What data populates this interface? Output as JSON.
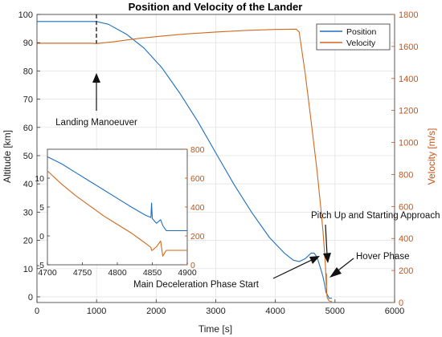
{
  "chart_data": {
    "type": "line",
    "title": "Position and Velocity of the Lander",
    "xlabel": "Time [s]",
    "ylabel_left": "Altitude [km]",
    "ylabel_right": "Velocity [m/s]",
    "xlim": [
      0,
      6000
    ],
    "ylim_left": [
      -2,
      100
    ],
    "ylim_right": [
      0,
      1800
    ],
    "xticks": [
      "0",
      "1000",
      "2000",
      "3000",
      "4000",
      "5000",
      "6000"
    ],
    "yticks_left": [
      "0",
      "10",
      "20",
      "30",
      "40",
      "50",
      "60",
      "70",
      "80",
      "90",
      "100"
    ],
    "yticks_right": [
      "0",
      "200",
      "400",
      "600",
      "800",
      "1000",
      "1200",
      "1400",
      "1600",
      "1800"
    ],
    "legend": {
      "position": "top-right"
    },
    "series": [
      {
        "name": "Position",
        "axis": "left",
        "color": "#1f6fc0",
        "points": [
          [
            0,
            97.5
          ],
          [
            1000,
            97.5
          ],
          [
            1200,
            96.5
          ],
          [
            1500,
            93
          ],
          [
            1800,
            88
          ],
          [
            2100,
            81
          ],
          [
            2400,
            72
          ],
          [
            2700,
            62
          ],
          [
            3000,
            51
          ],
          [
            3300,
            40
          ],
          [
            3600,
            30
          ],
          [
            3900,
            21
          ],
          [
            4150,
            15.5
          ],
          [
            4300,
            13
          ],
          [
            4400,
            12.5
          ],
          [
            4500,
            13.5
          ],
          [
            4600,
            15.5
          ],
          [
            4650,
            15.5
          ],
          [
            4700,
            14
          ],
          [
            4760,
            10
          ],
          [
            4800,
            7
          ],
          [
            4830,
            4
          ],
          [
            4850,
            1.5
          ],
          [
            4865,
            1
          ],
          [
            4880,
            0.5
          ],
          [
            4900,
            -0.5
          ],
          [
            4950,
            -0.5
          ]
        ]
      },
      {
        "name": "Velocity",
        "axis": "right",
        "color": "#d2691e",
        "points": [
          [
            0,
            1620
          ],
          [
            900,
            1620
          ],
          [
            1000,
            1618
          ],
          [
            1300,
            1630
          ],
          [
            1700,
            1650
          ],
          [
            2100,
            1665
          ],
          [
            2500,
            1678
          ],
          [
            3000,
            1690
          ],
          [
            3500,
            1700
          ],
          [
            4000,
            1706
          ],
          [
            4350,
            1708
          ],
          [
            4400,
            1690
          ],
          [
            4500,
            1430
          ],
          [
            4600,
            1130
          ],
          [
            4700,
            820
          ],
          [
            4760,
            600
          ],
          [
            4800,
            440
          ],
          [
            4840,
            230
          ],
          [
            4852,
            110
          ],
          [
            4856,
            180
          ],
          [
            4860,
            60
          ],
          [
            4870,
            30
          ],
          [
            4900,
            10
          ],
          [
            4950,
            5
          ]
        ]
      }
    ],
    "annotations": [
      {
        "text": "Landing Manoeuver",
        "x": 1000,
        "y": 79
      },
      {
        "text": "Pitch Up and Starting Approach",
        "x": 4845,
        "y": 13
      },
      {
        "text": "Hover Phase",
        "x": 4870,
        "y": 2
      },
      {
        "text": "Main Deceleration Phase Start",
        "x": 4720,
        "y": 11
      }
    ],
    "inset": {
      "xlim": [
        4700,
        4900
      ],
      "ylim_left": [
        -5,
        15
      ],
      "ylim_right": [
        0,
        800
      ],
      "xticks": [
        "4700",
        "4750",
        "4800",
        "4850",
        "4900"
      ],
      "yticks_left": [
        "-5",
        "0",
        "5",
        "10"
      ],
      "yticks_right": [
        "0",
        "200",
        "400",
        "600",
        "800"
      ],
      "series": [
        {
          "name": "Position",
          "axis": "left",
          "color": "#1f6fc0",
          "points": [
            [
              4700,
              13.7
            ],
            [
              4720,
              12.5
            ],
            [
              4740,
              11
            ],
            [
              4760,
              9.5
            ],
            [
              4780,
              8
            ],
            [
              4800,
              6.5
            ],
            [
              4820,
              5
            ],
            [
              4840,
              3.6
            ],
            [
              4848,
              3.2
            ],
            [
              4849,
              5.7
            ],
            [
              4850,
              3.0
            ],
            [
              4856,
              2.2
            ],
            [
              4862,
              2.8
            ],
            [
              4865,
              1.8
            ],
            [
              4870,
              0.9
            ],
            [
              4880,
              0.9
            ],
            [
              4900,
              0.9
            ]
          ]
        },
        {
          "name": "Velocity",
          "axis": "right",
          "color": "#d2691e",
          "points": [
            [
              4700,
              650
            ],
            [
              4720,
              560
            ],
            [
              4740,
              480
            ],
            [
              4760,
              410
            ],
            [
              4780,
              340
            ],
            [
              4800,
              280
            ],
            [
              4820,
              220
            ],
            [
              4840,
              150
            ],
            [
              4848,
              120
            ],
            [
              4849,
              100
            ],
            [
              4850,
              100
            ],
            [
              4856,
              125
            ],
            [
              4862,
              165
            ],
            [
              4865,
              60
            ],
            [
              4870,
              100
            ],
            [
              4880,
              100
            ],
            [
              4900,
              100
            ]
          ]
        }
      ]
    }
  }
}
